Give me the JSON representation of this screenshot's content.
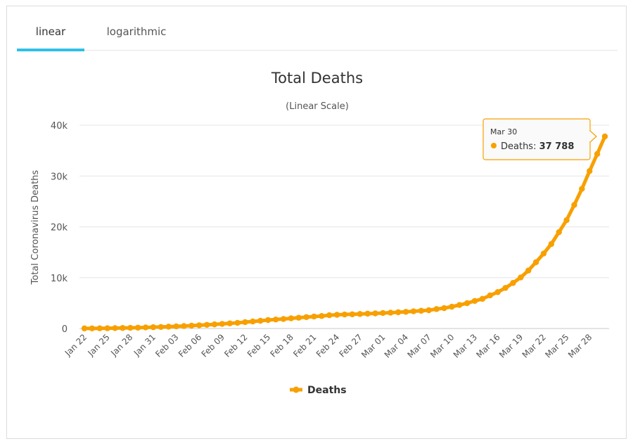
{
  "tabs": [
    {
      "label": "linear",
      "active": true
    },
    {
      "label": "logarithmic",
      "active": false
    }
  ],
  "tooltip": {
    "date": "Mar 30",
    "series": "Deaths",
    "value": "37 788"
  },
  "colors": {
    "series": "#f7a000",
    "tab_accent": "#2fc0e8",
    "tooltip_border": "#f7a000"
  },
  "chart_data": {
    "type": "line",
    "title": "Total Deaths",
    "subtitle": "(Linear Scale)",
    "ylabel": "Total Coronavirus Deaths",
    "xlabel": "",
    "ylim": [
      0,
      40000
    ],
    "y_ticks": [
      0,
      10000,
      20000,
      30000,
      40000
    ],
    "y_tick_labels": [
      "0",
      "10k",
      "20k",
      "30k",
      "40k"
    ],
    "grid": true,
    "legend": "bottom-center",
    "x_tick_labels": [
      "Jan 22",
      "Jan 25",
      "Jan 28",
      "Jan 31",
      "Feb 03",
      "Feb 06",
      "Feb 09",
      "Feb 12",
      "Feb 15",
      "Feb 18",
      "Feb 21",
      "Feb 24",
      "Feb 27",
      "Mar 01",
      "Mar 04",
      "Mar 07",
      "Mar 10",
      "Mar 13",
      "Mar 16",
      "Mar 19",
      "Mar 22",
      "Mar 25",
      "Mar 28"
    ],
    "x": [
      "Jan 22",
      "Jan 23",
      "Jan 24",
      "Jan 25",
      "Jan 26",
      "Jan 27",
      "Jan 28",
      "Jan 29",
      "Jan 30",
      "Jan 31",
      "Feb 01",
      "Feb 02",
      "Feb 03",
      "Feb 04",
      "Feb 05",
      "Feb 06",
      "Feb 07",
      "Feb 08",
      "Feb 09",
      "Feb 10",
      "Feb 11",
      "Feb 12",
      "Feb 13",
      "Feb 14",
      "Feb 15",
      "Feb 16",
      "Feb 17",
      "Feb 18",
      "Feb 19",
      "Feb 20",
      "Feb 21",
      "Feb 22",
      "Feb 23",
      "Feb 24",
      "Feb 25",
      "Feb 26",
      "Feb 27",
      "Feb 28",
      "Feb 29",
      "Mar 01",
      "Mar 02",
      "Mar 03",
      "Mar 04",
      "Mar 05",
      "Mar 06",
      "Mar 07",
      "Mar 08",
      "Mar 09",
      "Mar 10",
      "Mar 11",
      "Mar 12",
      "Mar 13",
      "Mar 14",
      "Mar 15",
      "Mar 16",
      "Mar 17",
      "Mar 18",
      "Mar 19",
      "Mar 20",
      "Mar 21",
      "Mar 22",
      "Mar 23",
      "Mar 24",
      "Mar 25",
      "Mar 26",
      "Mar 27",
      "Mar 28",
      "Mar 29",
      "Mar 30"
    ],
    "series": [
      {
        "name": "Deaths",
        "values": [
          17,
          25,
          41,
          56,
          80,
          106,
          132,
          170,
          213,
          259,
          304,
          362,
          426,
          492,
          565,
          638,
          724,
          813,
          910,
          1018,
          1115,
          1261,
          1383,
          1526,
          1669,
          1775,
          1873,
          2009,
          2126,
          2247,
          2360,
          2460,
          2618,
          2699,
          2763,
          2800,
          2858,
          2923,
          2977,
          3050,
          3117,
          3202,
          3285,
          3387,
          3494,
          3599,
          3827,
          4015,
          4291,
          4628,
          4981,
          5428,
          5833,
          6520,
          7162,
          7979,
          8960,
          10040,
          11403,
          13046,
          14748,
          16630,
          18958,
          21330,
          24318,
          27483,
          30981,
          34344,
          37788
        ]
      }
    ]
  }
}
